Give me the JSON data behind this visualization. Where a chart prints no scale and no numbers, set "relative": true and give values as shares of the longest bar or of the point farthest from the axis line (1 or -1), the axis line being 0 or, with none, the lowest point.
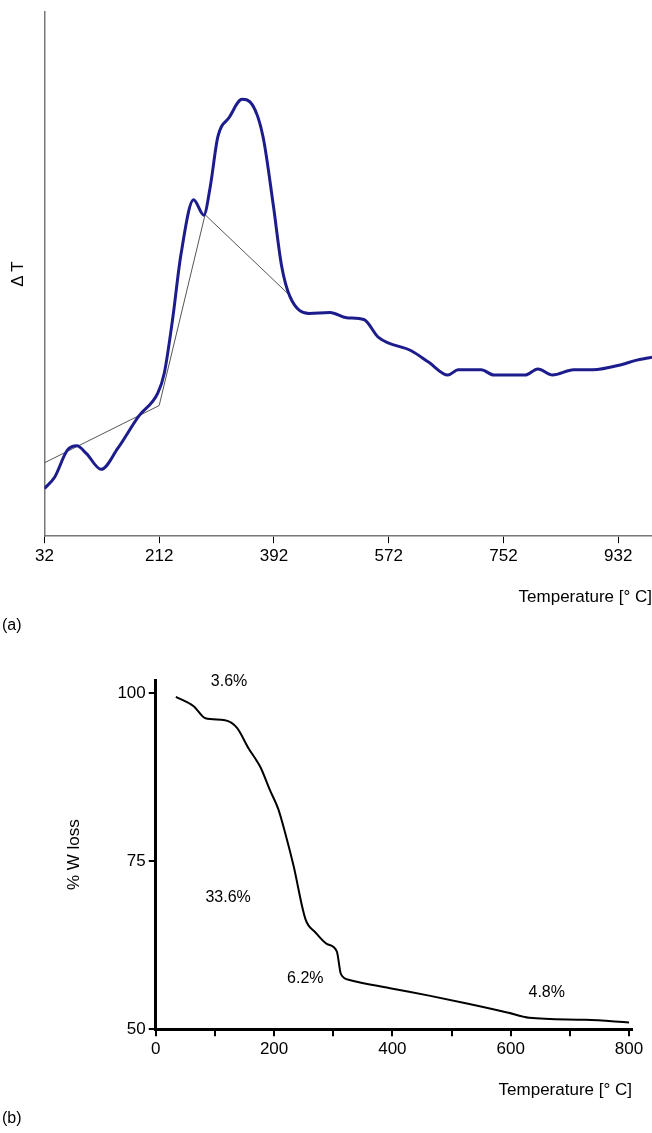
{
  "chart_data": [
    {
      "type": "line",
      "relative": true,
      "xlabel": "Temperature [° C]",
      "ylabel": "Δ T",
      "xlim": [
        32,
        985
      ],
      "xticks": [
        32,
        212,
        392,
        572,
        752,
        932
      ],
      "tick_labels": "x",
      "grid": false,
      "legend": false,
      "marker": "none",
      "line_style": "solid",
      "annotations": [
        "(a)"
      ],
      "series": [
        {
          "color": "#1c1c8c",
          "x": [
            32,
            48,
            68,
            83,
            98,
            121,
            147,
            180,
            210,
            220,
            233,
            246,
            266,
            282,
            292,
            304,
            322,
            342,
            358,
            375,
            391,
            404,
            417,
            447,
            480,
            506,
            533,
            556,
            608,
            635,
            665,
            681,
            717,
            737,
            786,
            806,
            829,
            862,
            892,
            938,
            958,
            985
          ],
          "values": [
            0.109,
            0.135,
            0.197,
            0.207,
            0.189,
            0.153,
            0.201,
            0.275,
            0.328,
            0.373,
            0.496,
            0.643,
            0.77,
            0.735,
            0.799,
            0.914,
            0.959,
            1,
            0.988,
            0.914,
            0.758,
            0.619,
            0.549,
            0.51,
            0.512,
            0.5,
            0.496,
            0.455,
            0.424,
            0.398,
            0.369,
            0.381,
            0.381,
            0.369,
            0.369,
            0.383,
            0.369,
            0.381,
            0.381,
            0.393,
            0.402,
            0.41
          ]
        },
        {
          "color": "#555555",
          "x": [
            32,
            212,
            284,
            417
          ],
          "values": [
            0.168,
            0.299,
            0.736,
            0.551
          ]
        }
      ]
    },
    {
      "type": "line",
      "xlabel": "Temperature [° C]",
      "ylabel": "% W loss",
      "xlim": [
        0,
        805
      ],
      "ylim": [
        50,
        102
      ],
      "xticks": [
        0,
        {
          "value": 100,
          "label": null
        },
        200,
        {
          "value": 300,
          "label": null
        },
        400,
        {
          "value": 500,
          "label": null
        },
        600,
        {
          "value": 700,
          "label": null
        },
        800
      ],
      "yticks": [
        50,
        75,
        100
      ],
      "grid": false,
      "legend": false,
      "marker": "none",
      "line_style": "solid",
      "annotations": [
        "3.6%",
        "33.6%",
        "6.2%",
        "4.8%",
        "(b)"
      ],
      "series": [
        {
          "color": "#000000",
          "x": [
            34,
            64,
            84,
            117,
            137,
            157,
            177,
            193,
            207,
            220,
            233,
            253,
            270,
            289,
            306,
            313,
            329,
            396,
            462,
            528,
            594,
            631,
            727,
            800
          ],
          "values": [
            99.5,
            98.1,
            96.3,
            96.0,
            94.9,
            91.8,
            89.0,
            85.6,
            82.8,
            78.8,
            74.3,
            66.4,
            64.4,
            62.7,
            61.6,
            58.2,
            57.3,
            56.1,
            55.0,
            53.8,
            52.5,
            51.7,
            51.4,
            51.0
          ]
        }
      ]
    }
  ]
}
